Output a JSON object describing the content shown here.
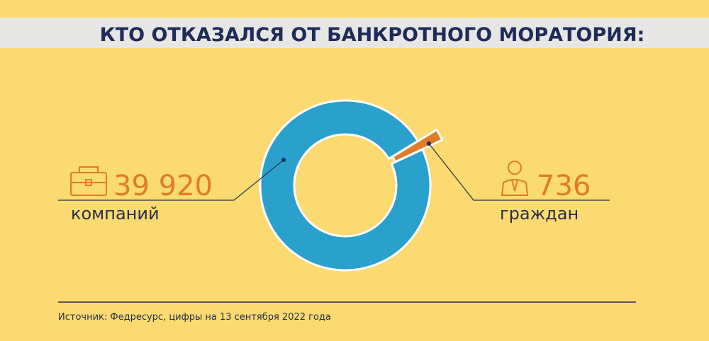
{
  "chart_data": {
    "type": "donut",
    "title": "КТО ОТКАЗАЛСЯ ОТ БАНКРОТНОГО МОРАТОРИЯ:",
    "categories": [
      "компаний",
      "граждан"
    ],
    "values": [
      39920,
      736
    ],
    "value_labels": [
      "39 920",
      "736"
    ],
    "colors": [
      "#2aa0cd",
      "#e07b2a"
    ],
    "source": "Источник: Федресурс, цифры на 13 сентября 2022 года"
  }
}
